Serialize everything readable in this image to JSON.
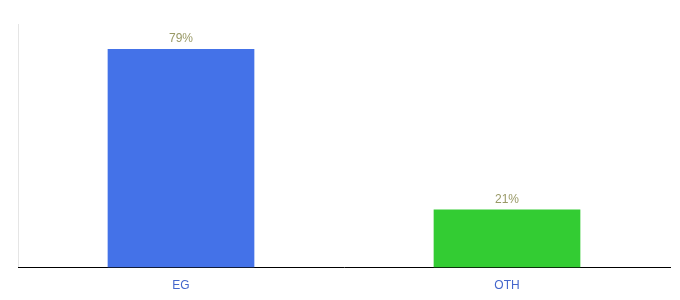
{
  "chart_data": {
    "type": "bar",
    "categories": [
      "EG",
      "OTH"
    ],
    "values": [
      79,
      21
    ],
    "value_labels": [
      "79%",
      "21%"
    ],
    "colors": [
      "#4472e8",
      "#33cc33"
    ],
    "ylim": [
      0,
      88
    ],
    "data_labels": true,
    "tick_labels": "x",
    "grid": false
  }
}
